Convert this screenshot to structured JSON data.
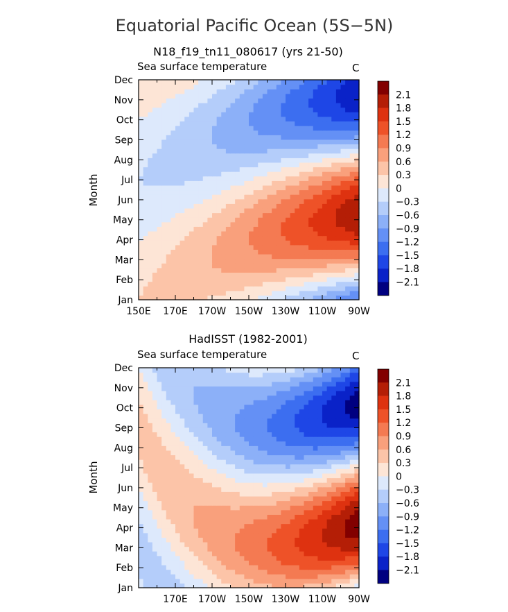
{
  "figure": {
    "title": "Equatorial Pacific Ocean (5S−5N)",
    "colors": [
      "#000080",
      "#0a22c8",
      "#1e46e6",
      "#3c6ef0",
      "#6490f5",
      "#8cb0f8",
      "#b4cdfa",
      "#dde9fc",
      "#fde5d6",
      "#fcc4a8",
      "#f9a07c",
      "#f47a52",
      "#ee5228",
      "#de3210",
      "#b41e06",
      "#820000"
    ],
    "levels": [
      2.1,
      1.8,
      1.5,
      1.2,
      0.9,
      0.6,
      0.3,
      0,
      -0.3,
      -0.6,
      -0.9,
      -1.2,
      -1.5,
      -1.8,
      -2.1
    ],
    "level_labels": [
      "2.1",
      "1.8",
      "1.5",
      "1.2",
      "0.9",
      "0.6",
      "0.3",
      "0",
      "−0.3",
      "−0.6",
      "−0.9",
      "−1.2",
      "−1.5",
      "−1.8",
      "−2.1"
    ]
  },
  "chart_data": [
    {
      "type": "heatmap",
      "title": "N18_f19_tn11_080617 (yrs 21-50)",
      "subtitle": "Sea surface temperature",
      "units": "C",
      "ylabel": "Month",
      "months": [
        "Jan",
        "Feb",
        "Mar",
        "Apr",
        "May",
        "Jun",
        "Jul",
        "Aug",
        "Sep",
        "Oct",
        "Nov",
        "Dec"
      ],
      "x_ticks": [
        "150E",
        "170E",
        "170W",
        "150W",
        "130W",
        "110W",
        "90W"
      ],
      "x_range": [
        150,
        270
      ],
      "value_range": [
        -2.4,
        2.4
      ],
      "contour_levels": [
        -2.1,
        -1.8,
        -1.5,
        -1.2,
        -0.9,
        -0.6,
        -0.3,
        0,
        0.3,
        0.6,
        0.9,
        1.2,
        1.5,
        1.8,
        2.1
      ],
      "anomaly_model": {
        "east_amplitude": 2.1,
        "east_phase_month": 4.3,
        "west_amplitude": 0.3,
        "west_phase_month": 0.0,
        "phase_lag_months_per_30deg": 0.45
      }
    },
    {
      "type": "heatmap",
      "title": "HadISST (1982-2001)",
      "subtitle": "Sea surface temperature",
      "units": "C",
      "ylabel": "Month",
      "months": [
        "Jan",
        "Feb",
        "Mar",
        "Apr",
        "May",
        "Jun",
        "Jul",
        "Aug",
        "Sep",
        "Oct",
        "Nov",
        "Dec"
      ],
      "x_ticks": [
        "",
        "170E",
        "170W",
        "150W",
        "130W",
        "110W",
        "90W"
      ],
      "x_range": [
        150,
        270
      ],
      "value_range": [
        -2.4,
        2.4
      ],
      "contour_levels": [
        -2.1,
        -1.8,
        -1.5,
        -1.2,
        -0.9,
        -0.6,
        -0.3,
        0,
        0.3,
        0.6,
        0.9,
        1.2,
        1.5,
        1.8,
        2.1
      ],
      "anomaly_model": {
        "east_amplitude": 2.3,
        "east_phase_month": 3.2,
        "west_amplitude": 0.4,
        "west_phase_month": 8.0,
        "phase_lag_months_per_30deg": 0.9
      }
    }
  ]
}
